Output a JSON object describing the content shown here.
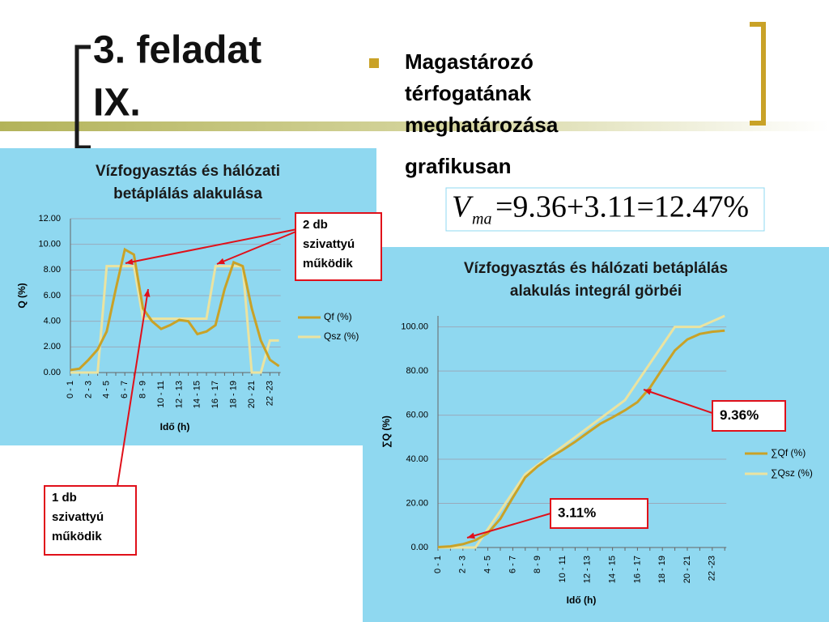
{
  "slide": {
    "title_lines": [
      "3. feladat",
      "IX."
    ],
    "bullet_lines": [
      "Magastározó",
      "térfogatának",
      "meghatározása",
      "grafikusan"
    ],
    "formula": {
      "variable": "V",
      "subscript": "ma",
      "expression": "=9.36+3.11=12.47%"
    }
  },
  "chart_data": [
    {
      "type": "line",
      "title_lines": [
        "Vízfogyasztás és hálózati",
        "betáplálás alakulása"
      ],
      "x_label": "Idő (h)",
      "y_label": "Q (%)",
      "categories": [
        "0 - 1",
        null,
        "2 - 3",
        null,
        "4 - 5",
        null,
        "6 - 7",
        null,
        "8 - 9",
        null,
        "10 - 11",
        null,
        "12 - 13",
        null,
        "14 - 15",
        null,
        "16 - 17",
        null,
        "18 - 19",
        null,
        "20 - 21",
        null,
        "22 -23",
        null
      ],
      "series": [
        {
          "name": "Qf (%)",
          "color": "#c9a227",
          "values": [
            0.2,
            0.3,
            1.0,
            1.8,
            3.2,
            6.5,
            9.6,
            9.2,
            5.0,
            4.0,
            3.4,
            3.7,
            4.1,
            4.0,
            3.0,
            3.2,
            3.7,
            6.5,
            8.6,
            8.3,
            5.0,
            2.5,
            1.0,
            0.5
          ]
        },
        {
          "name": "Qsz (%)",
          "color": "#ebe3a0",
          "values": [
            0,
            0,
            0,
            0,
            8.3,
            8.3,
            8.3,
            8.3,
            4.2,
            4.2,
            4.2,
            4.2,
            4.2,
            4.2,
            4.2,
            4.2,
            8.3,
            8.3,
            8.3,
            8.3,
            0,
            0,
            2.5,
            2.5
          ]
        }
      ],
      "ylim": [
        0,
        12
      ],
      "yticks": [
        {
          "value": 0,
          "label": "0.00"
        },
        {
          "value": 2,
          "label": "2.00"
        },
        {
          "value": 4,
          "label": "4.00"
        },
        {
          "value": 6,
          "label": "6.00"
        },
        {
          "value": 8,
          "label": "8.00"
        },
        {
          "value": 10,
          "label": "10.00"
        },
        {
          "value": 12,
          "label": "12.00"
        }
      ],
      "grid": true,
      "annotations": [
        {
          "lines": [
            "2 db",
            "szivattyú",
            "működik"
          ]
        },
        {
          "lines": [
            "1 db",
            "szivattyú",
            "működik"
          ]
        }
      ]
    },
    {
      "type": "line",
      "title_lines": [
        "Vízfogyasztás és hálózati betáplálás",
        "alakulás integrál görbéi"
      ],
      "x_label": "Idő (h)",
      "y_label": "∑Q (%)",
      "categories": [
        "0 - 1",
        null,
        "2 - 3",
        null,
        "4 - 5",
        null,
        "6 - 7",
        null,
        "8 - 9",
        null,
        "10 - 11",
        null,
        "12 - 13",
        null,
        "14 - 15",
        null,
        "16 - 17",
        null,
        "18 - 19",
        null,
        "20 - 21",
        null,
        "22 -23",
        null
      ],
      "series": [
        {
          "name": "∑Qf (%)",
          "color": "#c9a227",
          "values": [
            0.2,
            0.5,
            1.5,
            3.3,
            6.5,
            13.0,
            22.6,
            31.8,
            36.8,
            40.8,
            44.2,
            47.9,
            52.0,
            56.0,
            59.0,
            62.2,
            65.9,
            72.4,
            81.0,
            89.3,
            94.3,
            96.8,
            97.8,
            98.3
          ]
        },
        {
          "name": "∑Qsz (%)",
          "color": "#ebe3a0",
          "values": [
            0,
            0,
            0,
            0,
            8.3,
            16.6,
            24.9,
            33.2,
            37.4,
            41.6,
            45.8,
            50.0,
            54.2,
            58.4,
            62.6,
            66.8,
            75.1,
            83.4,
            91.7,
            100,
            100,
            100,
            102.5,
            105
          ]
        }
      ],
      "ylim": [
        0,
        105
      ],
      "yticks": [
        {
          "value": 0,
          "label": "0.00"
        },
        {
          "value": 20,
          "label": "20.00"
        },
        {
          "value": 40,
          "label": "40.00"
        },
        {
          "value": 60,
          "label": "60.00"
        },
        {
          "value": 80,
          "label": "80.00"
        },
        {
          "value": 100,
          "label": "100.00"
        }
      ],
      "grid": true,
      "annotations": [
        {
          "lines": [
            "9.36%"
          ]
        },
        {
          "lines": [
            "3.11%"
          ]
        }
      ]
    }
  ]
}
